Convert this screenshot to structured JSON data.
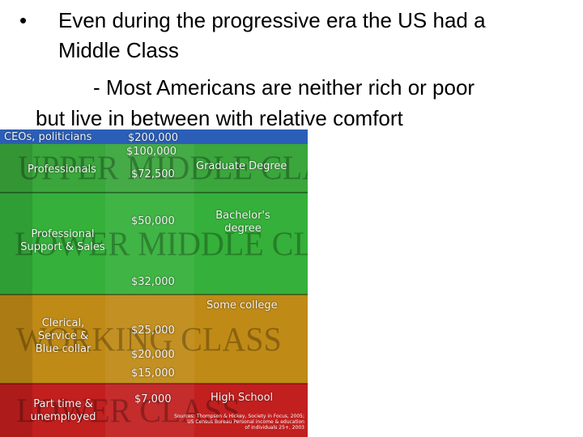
{
  "slide": {
    "bullet_symbol": "•",
    "line1": "Even during the progressive era the US had a",
    "line2": "Middle Class",
    "line3": "- Most Americans are neither rich or poor",
    "line4": "but live in between with relative comfort"
  },
  "diagram": {
    "bands": {
      "upper_middle_class": "UPPER MIDDLE CLASS",
      "lower_middle_class": "LOWER MIDDLE CLASS",
      "working_class": "WORKING CLASS",
      "lower_class": "LOWER CLASS"
    },
    "occupations": {
      "top": "CEOs, politicians",
      "professionals": "Professionals",
      "prof_support_1": "Professional",
      "prof_support_2": "Support & Sales",
      "clerical_1": "Clerical,",
      "clerical_2": "Service &",
      "clerical_3": "Blue collar",
      "part_time_1": "Part time &",
      "part_time_2": "unemployed"
    },
    "incomes": {
      "i200": "$200,000",
      "i100": "$100,000",
      "i72": "$72,500",
      "i50": "$50,000",
      "i32": "$32,000",
      "i25": "$25,000",
      "i20": "$20,000",
      "i15": "$15,000",
      "i7": "$7,000"
    },
    "education": {
      "graduate": "Graduate Degree",
      "bachelors_1": "Bachelor's",
      "bachelors_2": "degree",
      "some_college": "Some college",
      "high_school": "High School"
    },
    "source_1": "Sources: Thompson & Hickey, Society in Focus, 2005;",
    "source_2": "US Census Bureau Personal income & education",
    "source_3": "of individuals 25+, 2003"
  },
  "colors": {
    "top_band": "#2b5fb7",
    "upper_middle": "#3aa63c",
    "lower_middle": "#35b03a",
    "working": "#c08a16",
    "lower": "#c21f1f"
  }
}
